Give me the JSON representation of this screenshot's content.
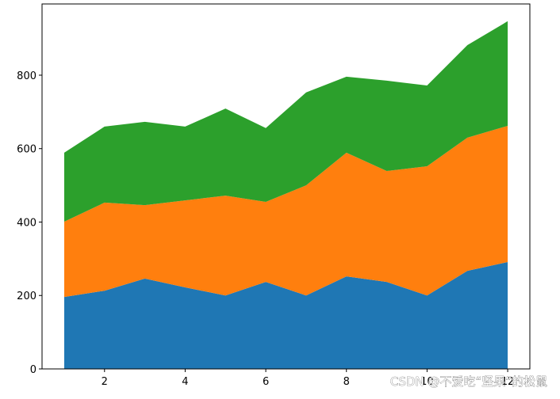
{
  "chart_data": {
    "type": "stackplot",
    "x": [
      1,
      2,
      3,
      4,
      5,
      6,
      7,
      8,
      9,
      10,
      11,
      12
    ],
    "series": [
      {
        "color": "#1f77b4",
        "values": [
          196,
          213,
          246,
          222,
          200,
          237,
          200,
          252,
          237,
          200,
          267,
          291
        ]
      },
      {
        "color": "#ff7f0e",
        "values": [
          205,
          240,
          200,
          237,
          272,
          218,
          300,
          337,
          302,
          352,
          363,
          371
        ]
      },
      {
        "color": "#2ca02c",
        "values": [
          188,
          207,
          227,
          201,
          237,
          201,
          253,
          207,
          246,
          220,
          252,
          285
        ]
      }
    ],
    "xlim": [
      0.45,
      12.55
    ],
    "ylim": [
      0,
      994
    ],
    "xticks": [
      2,
      4,
      6,
      8,
      10,
      12
    ],
    "yticks": [
      0,
      200,
      400,
      600,
      800
    ],
    "watermark": "CSDN @不爱吃“坚果”的松鼠"
  }
}
